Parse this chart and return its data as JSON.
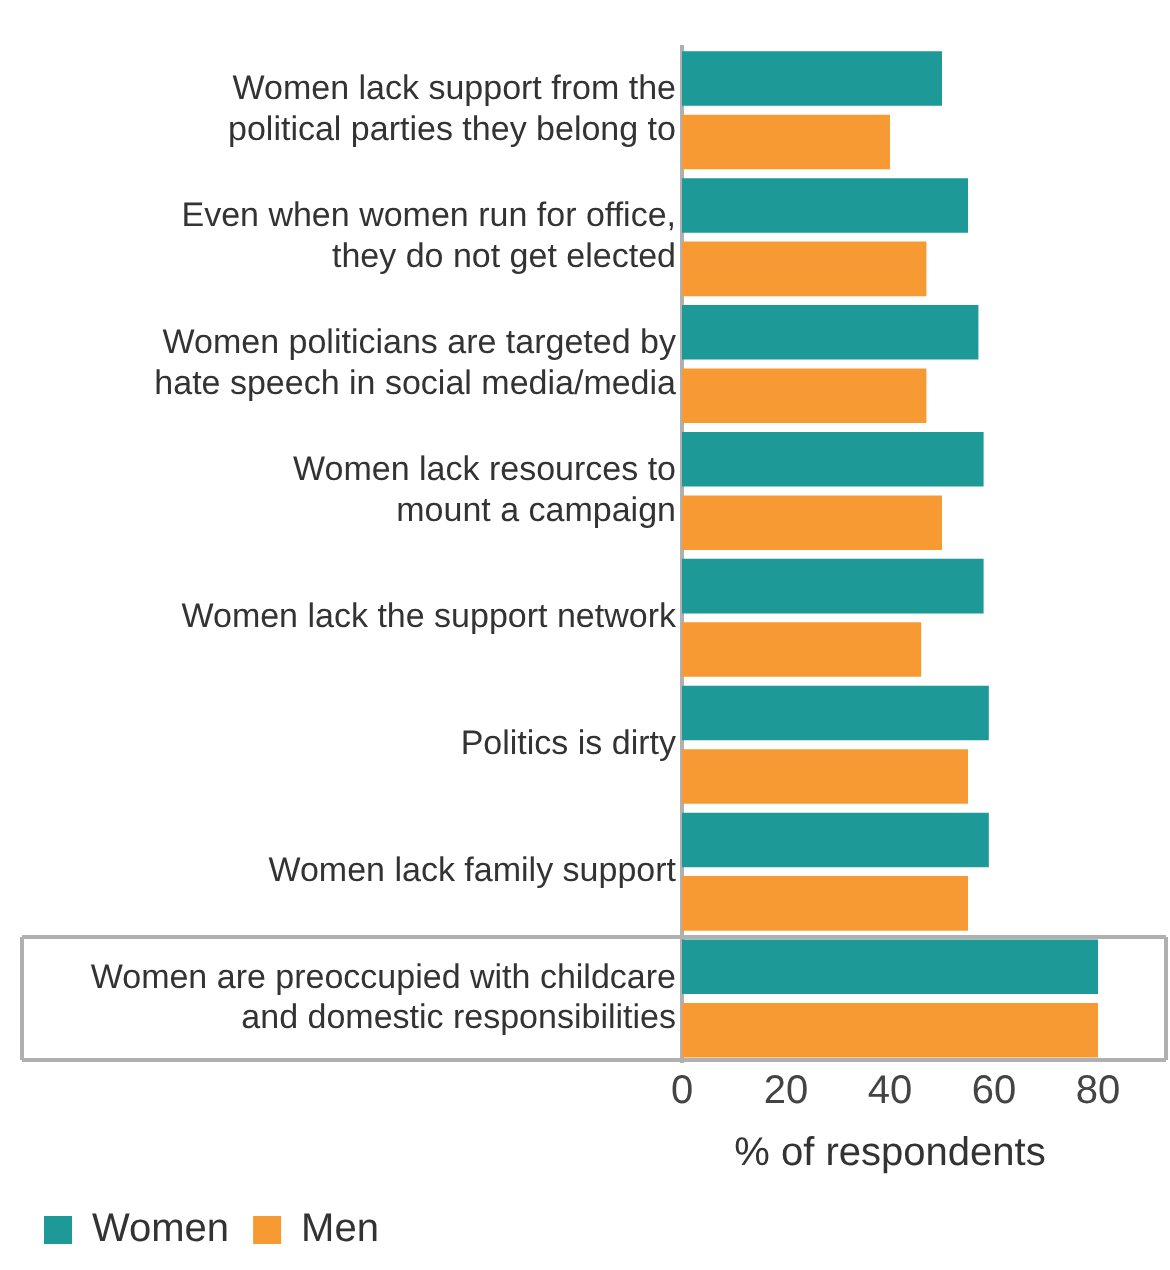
{
  "chart_data": {
    "type": "bar",
    "orientation": "horizontal",
    "xlabel": "% of respondents",
    "categories": [
      "Women lack support from the\npolitical parties they belong to",
      "Even when women run for office,\nthey do not get elected",
      "Women politicians are targeted by\nhate speech in social media/media",
      "Women lack resources to\nmount a campaign",
      "Women lack the support network",
      "Politics is dirty",
      "Women lack family support",
      "Women are preoccupied with childcare\nand domestic responsibilities"
    ],
    "series": [
      {
        "name": "Women",
        "color": "#1d9997",
        "values": [
          50,
          55,
          57,
          58,
          58,
          59,
          59,
          80
        ]
      },
      {
        "name": "Men",
        "color": "#f79a34",
        "values": [
          40,
          47,
          47,
          50,
          46,
          55,
          55,
          80
        ]
      }
    ],
    "xlim": [
      0,
      80
    ],
    "xticks": [
      0,
      20,
      40,
      60,
      80
    ],
    "grid": false,
    "legend": "bottom left"
  }
}
